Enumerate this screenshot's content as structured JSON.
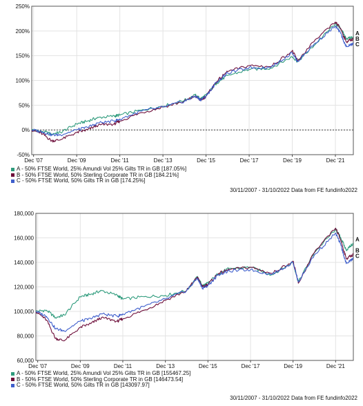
{
  "chart_data": [
    {
      "type": "line",
      "ylim": [
        -50,
        250
      ],
      "yticks": [
        "250%",
        "200%",
        "150%",
        "100%",
        "50%",
        "0%",
        "-50%"
      ],
      "ytick_values": [
        250,
        200,
        150,
        100,
        50,
        0,
        -50
      ],
      "xlim": [
        "2007-11-30",
        "2022-10-31"
      ],
      "xticks": [
        "Dec '07",
        "Dec '09",
        "Dec '11",
        "Dec '13",
        "Dec '15",
        "Dec '17",
        "Dec '19",
        "Dec '21"
      ],
      "xtick_values": [
        "2007-12-31",
        "2009-12-31",
        "2011-12-31",
        "2013-12-31",
        "2015-12-31",
        "2017-12-31",
        "2019-12-31",
        "2021-12-31"
      ],
      "zero_line": true,
      "grid": true,
      "x": [
        "2007-11-30",
        "2008-05-31",
        "2008-10-31",
        "2009-03-31",
        "2009-12-31",
        "2010-06-30",
        "2010-12-31",
        "2011-09-30",
        "2011-12-31",
        "2012-12-31",
        "2013-12-31",
        "2014-12-31",
        "2015-06-30",
        "2015-09-30",
        "2015-12-31",
        "2016-06-30",
        "2016-12-31",
        "2017-12-31",
        "2018-12-31",
        "2019-12-31",
        "2020-03-31",
        "2020-12-31",
        "2021-12-31",
        "2022-03-31",
        "2022-06-30",
        "2022-10-31"
      ],
      "series": [
        {
          "name": "A - 50% FTSE World, 25% Amundi Vol 25% Gilts TR in GB [187.05%]",
          "end_label": "A",
          "color": "#2e9b7c",
          "values": [
            0,
            -3,
            -8,
            -5,
            12,
            18,
            25,
            28,
            30,
            40,
            48,
            60,
            70,
            63,
            70,
            95,
            110,
            122,
            125,
            148,
            138,
            170,
            215,
            205,
            185,
            187
          ]
        },
        {
          "name": "B - 50% FTSE World, 50% Sterling Corporate TR in GB [184.21%]",
          "end_label": "B",
          "color": "#6e0e3a",
          "values": [
            0,
            -8,
            -22,
            -20,
            -5,
            0,
            10,
            12,
            18,
            35,
            46,
            58,
            68,
            60,
            68,
            98,
            118,
            130,
            128,
            160,
            140,
            178,
            218,
            205,
            178,
            184
          ]
        },
        {
          "name": "C - 50% FTSE World, 50% Gilts TR in GB [174.25%]",
          "end_label": "C",
          "color": "#3f5fcc",
          "values": [
            0,
            -4,
            -10,
            -10,
            0,
            5,
            14,
            18,
            22,
            38,
            46,
            58,
            68,
            61,
            68,
            97,
            115,
            126,
            126,
            156,
            138,
            173,
            210,
            195,
            168,
            174
          ]
        }
      ]
    },
    {
      "type": "line",
      "ylim": [
        60000,
        180000
      ],
      "yticks": [
        "180,000",
        "160,000",
        "140,000",
        "120,000",
        "100,000",
        "80,000",
        "60,000"
      ],
      "ytick_values": [
        180000,
        160000,
        140000,
        120000,
        100000,
        80000,
        60000
      ],
      "xlim": [
        "2007-11-30",
        "2022-10-31"
      ],
      "xticks": [
        "Dec '07",
        "Dec '09",
        "Dec '11",
        "Dec '13",
        "Dec '15",
        "Dec '17",
        "Dec '19",
        "Dec '21"
      ],
      "xtick_values": [
        "2007-12-31",
        "2009-12-31",
        "2011-12-31",
        "2013-12-31",
        "2015-12-31",
        "2017-12-31",
        "2019-12-31",
        "2021-12-31"
      ],
      "grid": true,
      "x": [
        "2007-11-30",
        "2008-05-31",
        "2008-10-31",
        "2009-03-31",
        "2009-12-31",
        "2010-06-30",
        "2010-12-31",
        "2011-09-30",
        "2011-12-31",
        "2012-12-31",
        "2013-12-31",
        "2014-12-31",
        "2015-06-30",
        "2015-09-30",
        "2015-12-31",
        "2016-06-30",
        "2016-12-31",
        "2017-12-31",
        "2018-12-31",
        "2019-12-31",
        "2020-03-31",
        "2020-12-31",
        "2021-12-31",
        "2022-03-31",
        "2022-06-30",
        "2022-10-31"
      ],
      "series": [
        {
          "name": "A - 50% FTSE World, 25% Amundi Vol 25% Gilts TR in GB [155467.25]",
          "end_label": "A",
          "color": "#2e9b7c",
          "values": [
            100000,
            101000,
            95000,
            97000,
            112000,
            114000,
            117000,
            113000,
            110000,
            112000,
            113000,
            117000,
            128000,
            121000,
            123000,
            131000,
            135000,
            136000,
            130000,
            140000,
            124000,
            148000,
            167000,
            160000,
            150000,
            155467
          ]
        },
        {
          "name": "B - 50% FTSE World, 50% Sterling Corporate TR in GB [146473.54]",
          "end_label": "B",
          "color": "#6e0e3a",
          "values": [
            100000,
            93000,
            78000,
            76000,
            87000,
            90000,
            95000,
            92000,
            94000,
            101000,
            109000,
            117000,
            128000,
            120000,
            122000,
            131000,
            134000,
            136000,
            131000,
            141000,
            123000,
            148000,
            168000,
            158000,
            143000,
            146474
          ]
        },
        {
          "name": "C - 50% FTSE World, 50% Gilts TR in GB [143097.97]",
          "end_label": "C",
          "color": "#3f5fcc",
          "values": [
            100000,
            96000,
            86000,
            84000,
            92000,
            94000,
            98000,
            96000,
            98000,
            104000,
            110000,
            117000,
            127000,
            119000,
            121000,
            130000,
            133000,
            134000,
            130000,
            140000,
            124000,
            146000,
            164000,
            154000,
            139000,
            143098
          ]
        }
      ]
    }
  ],
  "footer_notes": [
    "30/11/2007 - 31/10/2022 Data from FE fundinfo2022",
    "30/11/2007 - 31/10/2022 Data from FE fundinfo2022"
  ]
}
